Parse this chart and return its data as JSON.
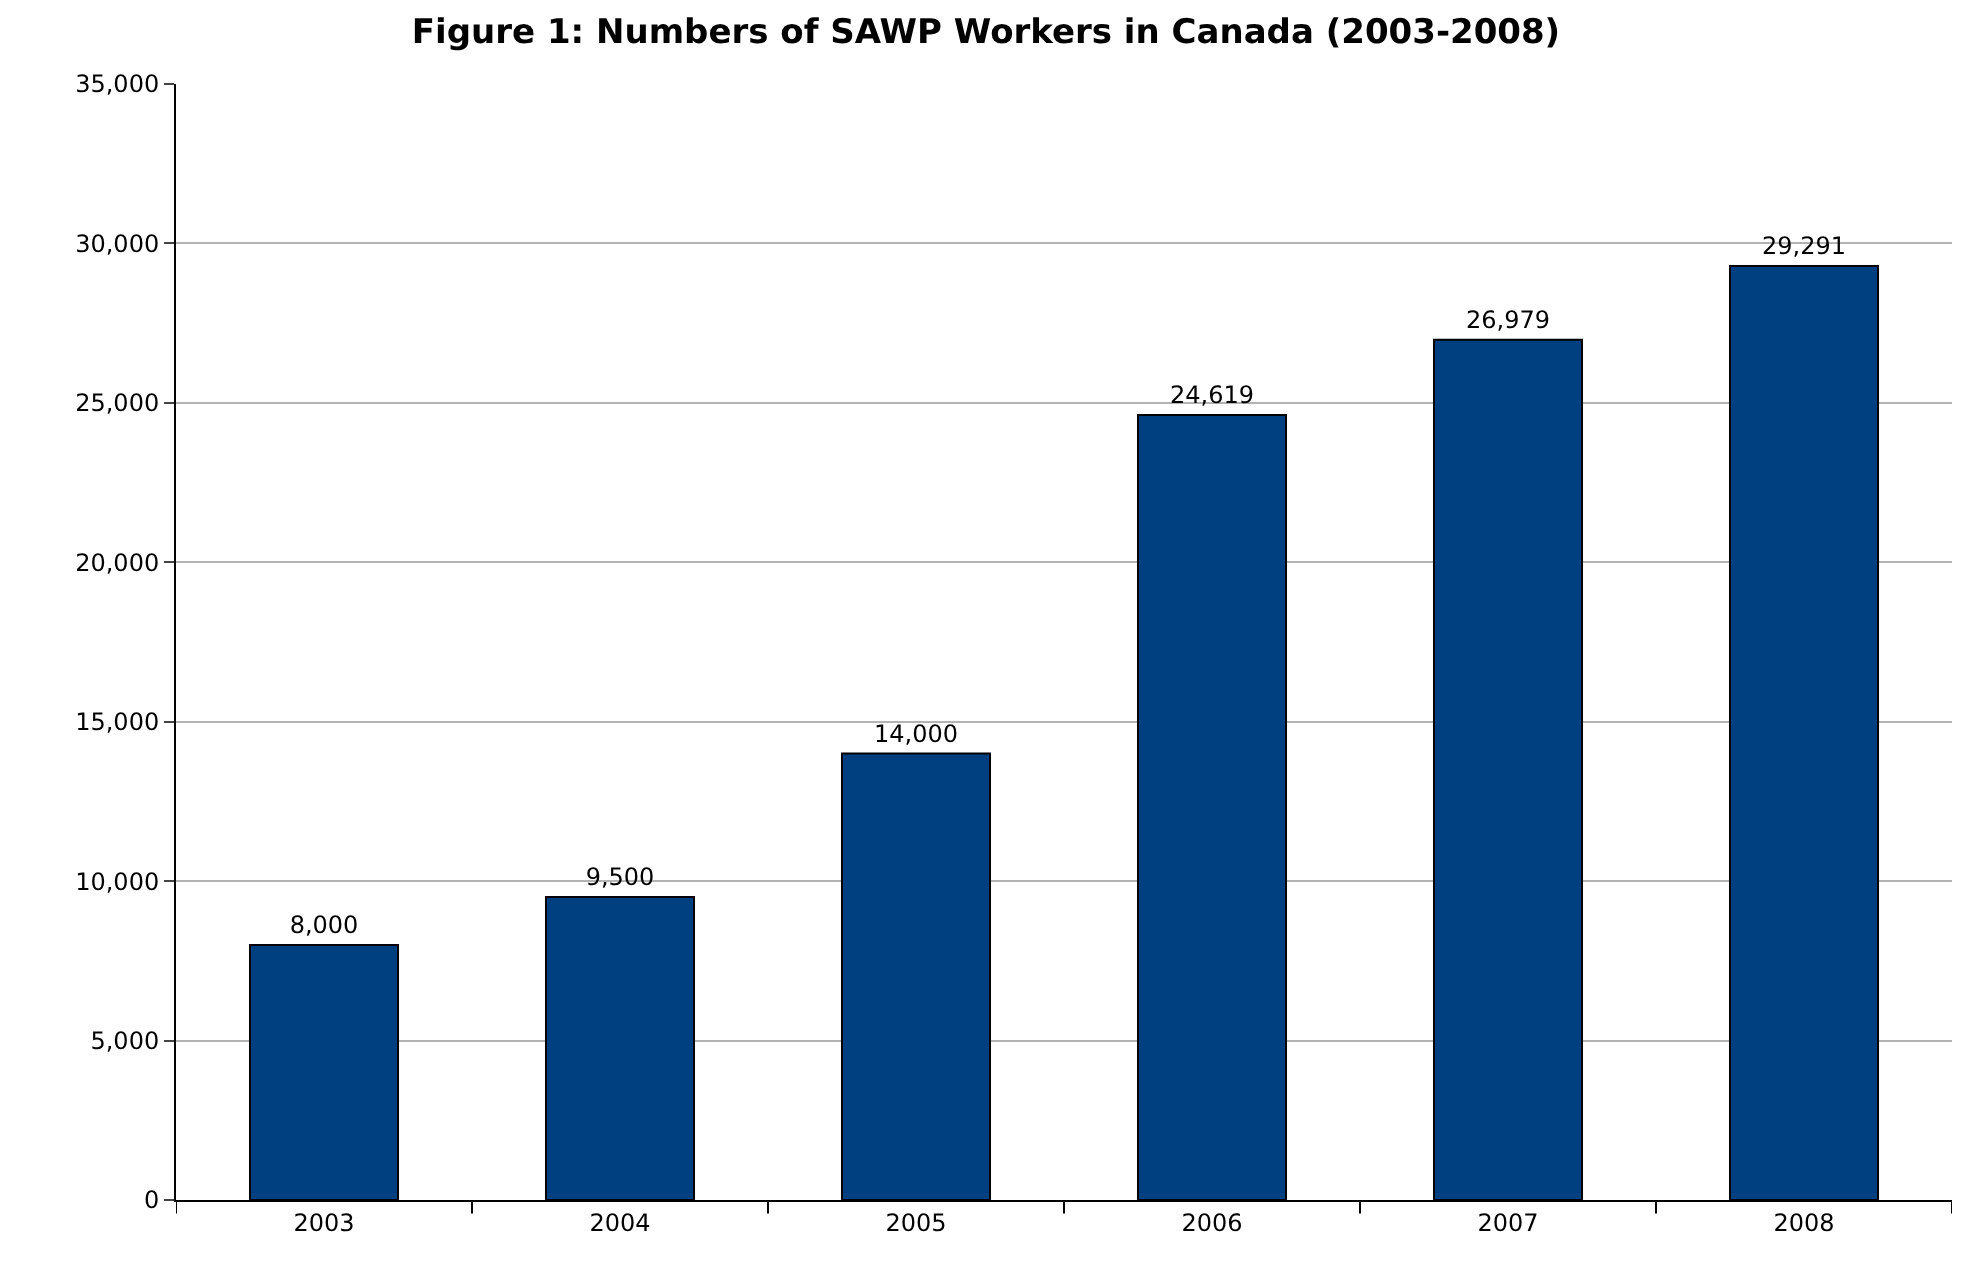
{
  "chart_data": {
    "type": "bar",
    "title": "Figure 1: Numbers of SAWP Workers in Canada (2003-2008)",
    "categories": [
      "2003",
      "2004",
      "2005",
      "2006",
      "2007",
      "2008"
    ],
    "values": [
      8000,
      9500,
      14000,
      24619,
      26979,
      29291
    ],
    "color": "#004080",
    "ylim": [
      0,
      35000
    ],
    "yticks": [
      {
        "value": 0,
        "label": "0"
      },
      {
        "value": 5000,
        "label": "5,000"
      },
      {
        "value": 10000,
        "label": "10,000"
      },
      {
        "value": 15000,
        "label": "15,000"
      },
      {
        "value": 20000,
        "label": "20,000"
      },
      {
        "value": 25000,
        "label": "25,000"
      },
      {
        "value": 30000,
        "label": "30,000"
      },
      {
        "value": 35000,
        "label": "35,000"
      }
    ],
    "value_labels": [
      "8,000",
      "9,500",
      "14,000",
      "24,619",
      "26,979",
      "29,291"
    ],
    "grid": "y",
    "legend": false
  }
}
